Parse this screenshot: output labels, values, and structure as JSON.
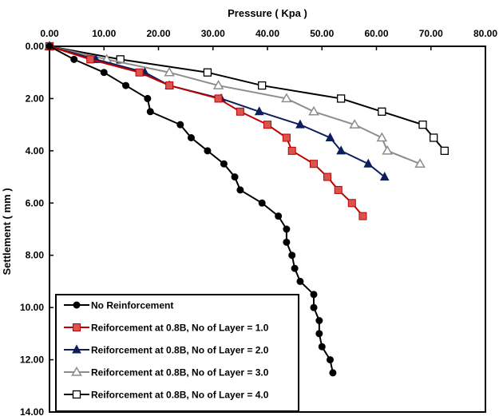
{
  "chart_data": {
    "type": "line",
    "xlabel": "Pressure ( Kpa )",
    "ylabel": "Settlement ( mm )",
    "xlim": [
      0,
      80
    ],
    "ylim": [
      0,
      14
    ],
    "x_ticks": [
      "0.00",
      "10.00",
      "20.00",
      "30.00",
      "40.00",
      "50.00",
      "60.00",
      "70.00",
      "80.00"
    ],
    "y_ticks": [
      "0.00",
      "2.00",
      "4.00",
      "6.00",
      "8.00",
      "10.00",
      "12.00",
      "14.00"
    ],
    "x_axis_position": "top",
    "y_axis_inverted": true,
    "grid": false,
    "legend_position": "bottom-left",
    "series": [
      {
        "name": "No Reinforcement",
        "color": "#000000",
        "marker": "circle-filled",
        "points": [
          [
            0,
            0
          ],
          [
            4.5,
            0.5
          ],
          [
            10,
            1
          ],
          [
            14,
            1.5
          ],
          [
            18,
            2
          ],
          [
            18.5,
            2.5
          ],
          [
            24,
            3
          ],
          [
            26,
            3.5
          ],
          [
            29,
            4
          ],
          [
            32,
            4.5
          ],
          [
            34,
            5
          ],
          [
            35,
            5.5
          ],
          [
            39,
            6
          ],
          [
            42,
            6.5
          ],
          [
            43.5,
            7
          ],
          [
            43.5,
            7.5
          ],
          [
            44.5,
            8
          ],
          [
            45,
            8.5
          ],
          [
            46,
            9
          ],
          [
            48.5,
            9.5
          ],
          [
            48.5,
            10
          ],
          [
            49.5,
            10.5
          ],
          [
            49.5,
            11
          ],
          [
            50,
            11.5
          ],
          [
            51.5,
            12
          ],
          [
            52,
            12.5
          ]
        ]
      },
      {
        "name": "Reiforcement at 0.8B, No of Layer = 1.0",
        "color": "#c00000",
        "fill": "#d9534f",
        "marker": "square-filled",
        "points": [
          [
            0,
            0
          ],
          [
            7.5,
            0.5
          ],
          [
            16.5,
            1
          ],
          [
            22,
            1.5
          ],
          [
            31,
            2
          ],
          [
            35,
            2.5
          ],
          [
            40,
            3
          ],
          [
            43.5,
            3.5
          ],
          [
            44.5,
            4
          ],
          [
            48.5,
            4.5
          ],
          [
            51,
            5
          ],
          [
            53,
            5.5
          ],
          [
            55.5,
            6
          ],
          [
            57.5,
            6.5
          ]
        ]
      },
      {
        "name": "Reiforcement at 0.8B, No of Layer = 2.0",
        "color": "#0c1f5c",
        "marker": "triangle-filled",
        "points": [
          [
            0,
            0
          ],
          [
            8.5,
            0.5
          ],
          [
            17.5,
            1
          ],
          [
            22,
            1.5
          ],
          [
            31.5,
            2
          ],
          [
            38.5,
            2.5
          ],
          [
            46,
            3
          ],
          [
            51.5,
            3.5
          ],
          [
            53.5,
            4
          ],
          [
            58.5,
            4.5
          ],
          [
            61.5,
            5
          ]
        ]
      },
      {
        "name": "Reiforcement at 0.8B, No of Layer = 3.0",
        "color": "#8c8c8c",
        "marker": "triangle-open",
        "points": [
          [
            0,
            0
          ],
          [
            10.5,
            0.5
          ],
          [
            22,
            1
          ],
          [
            31,
            1.5
          ],
          [
            43.5,
            2
          ],
          [
            48.5,
            2.5
          ],
          [
            56,
            3
          ],
          [
            61,
            3.5
          ],
          [
            62,
            4
          ],
          [
            68,
            4.5
          ]
        ]
      },
      {
        "name": "Reiforcement at 0.8B, No of Layer = 4.0",
        "color": "#000000",
        "marker": "square-open",
        "points": [
          [
            0,
            0
          ],
          [
            13,
            0.5
          ],
          [
            29,
            1
          ],
          [
            39,
            1.5
          ],
          [
            53.5,
            2
          ],
          [
            61,
            2.5
          ],
          [
            68.5,
            3
          ],
          [
            70.5,
            3.5
          ],
          [
            72.5,
            4
          ]
        ]
      }
    ]
  }
}
